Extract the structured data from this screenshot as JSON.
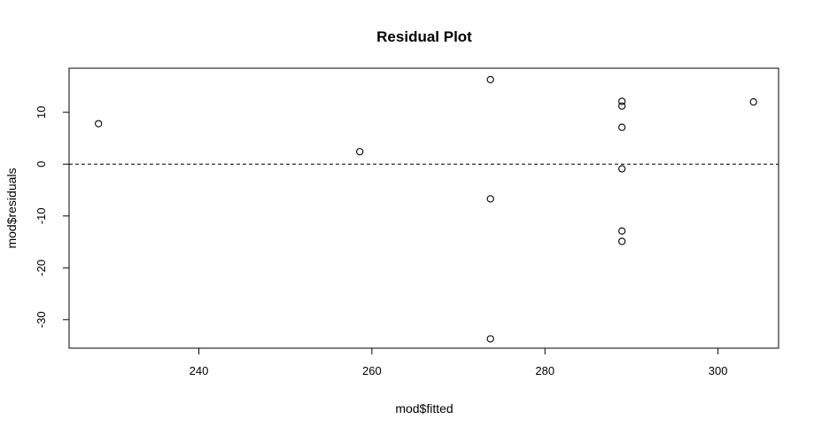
{
  "chart_data": {
    "type": "scatter",
    "title": "Residual Plot",
    "xlabel": "mod$fitted",
    "ylabel": "mod$residuals",
    "xlim": [
      225,
      307
    ],
    "ylim": [
      -35.5,
      18.5
    ],
    "x_ticks": [
      240,
      260,
      280,
      300
    ],
    "y_ticks": [
      -30,
      -20,
      -10,
      0,
      10
    ],
    "points": [
      {
        "x": 228.4,
        "y": 7.8
      },
      {
        "x": 258.6,
        "y": 2.4
      },
      {
        "x": 273.7,
        "y": 16.3
      },
      {
        "x": 273.7,
        "y": -6.7
      },
      {
        "x": 273.7,
        "y": -33.7
      },
      {
        "x": 288.9,
        "y": 12.1
      },
      {
        "x": 288.9,
        "y": 11.2
      },
      {
        "x": 288.9,
        "y": 7.1
      },
      {
        "x": 288.9,
        "y": -0.9
      },
      {
        "x": 288.9,
        "y": -12.9
      },
      {
        "x": 288.9,
        "y": -14.9
      },
      {
        "x": 304.1,
        "y": 12.0
      }
    ],
    "reference_line": {
      "y": 0,
      "style": "dashed"
    },
    "grid": false,
    "legend": "none"
  }
}
